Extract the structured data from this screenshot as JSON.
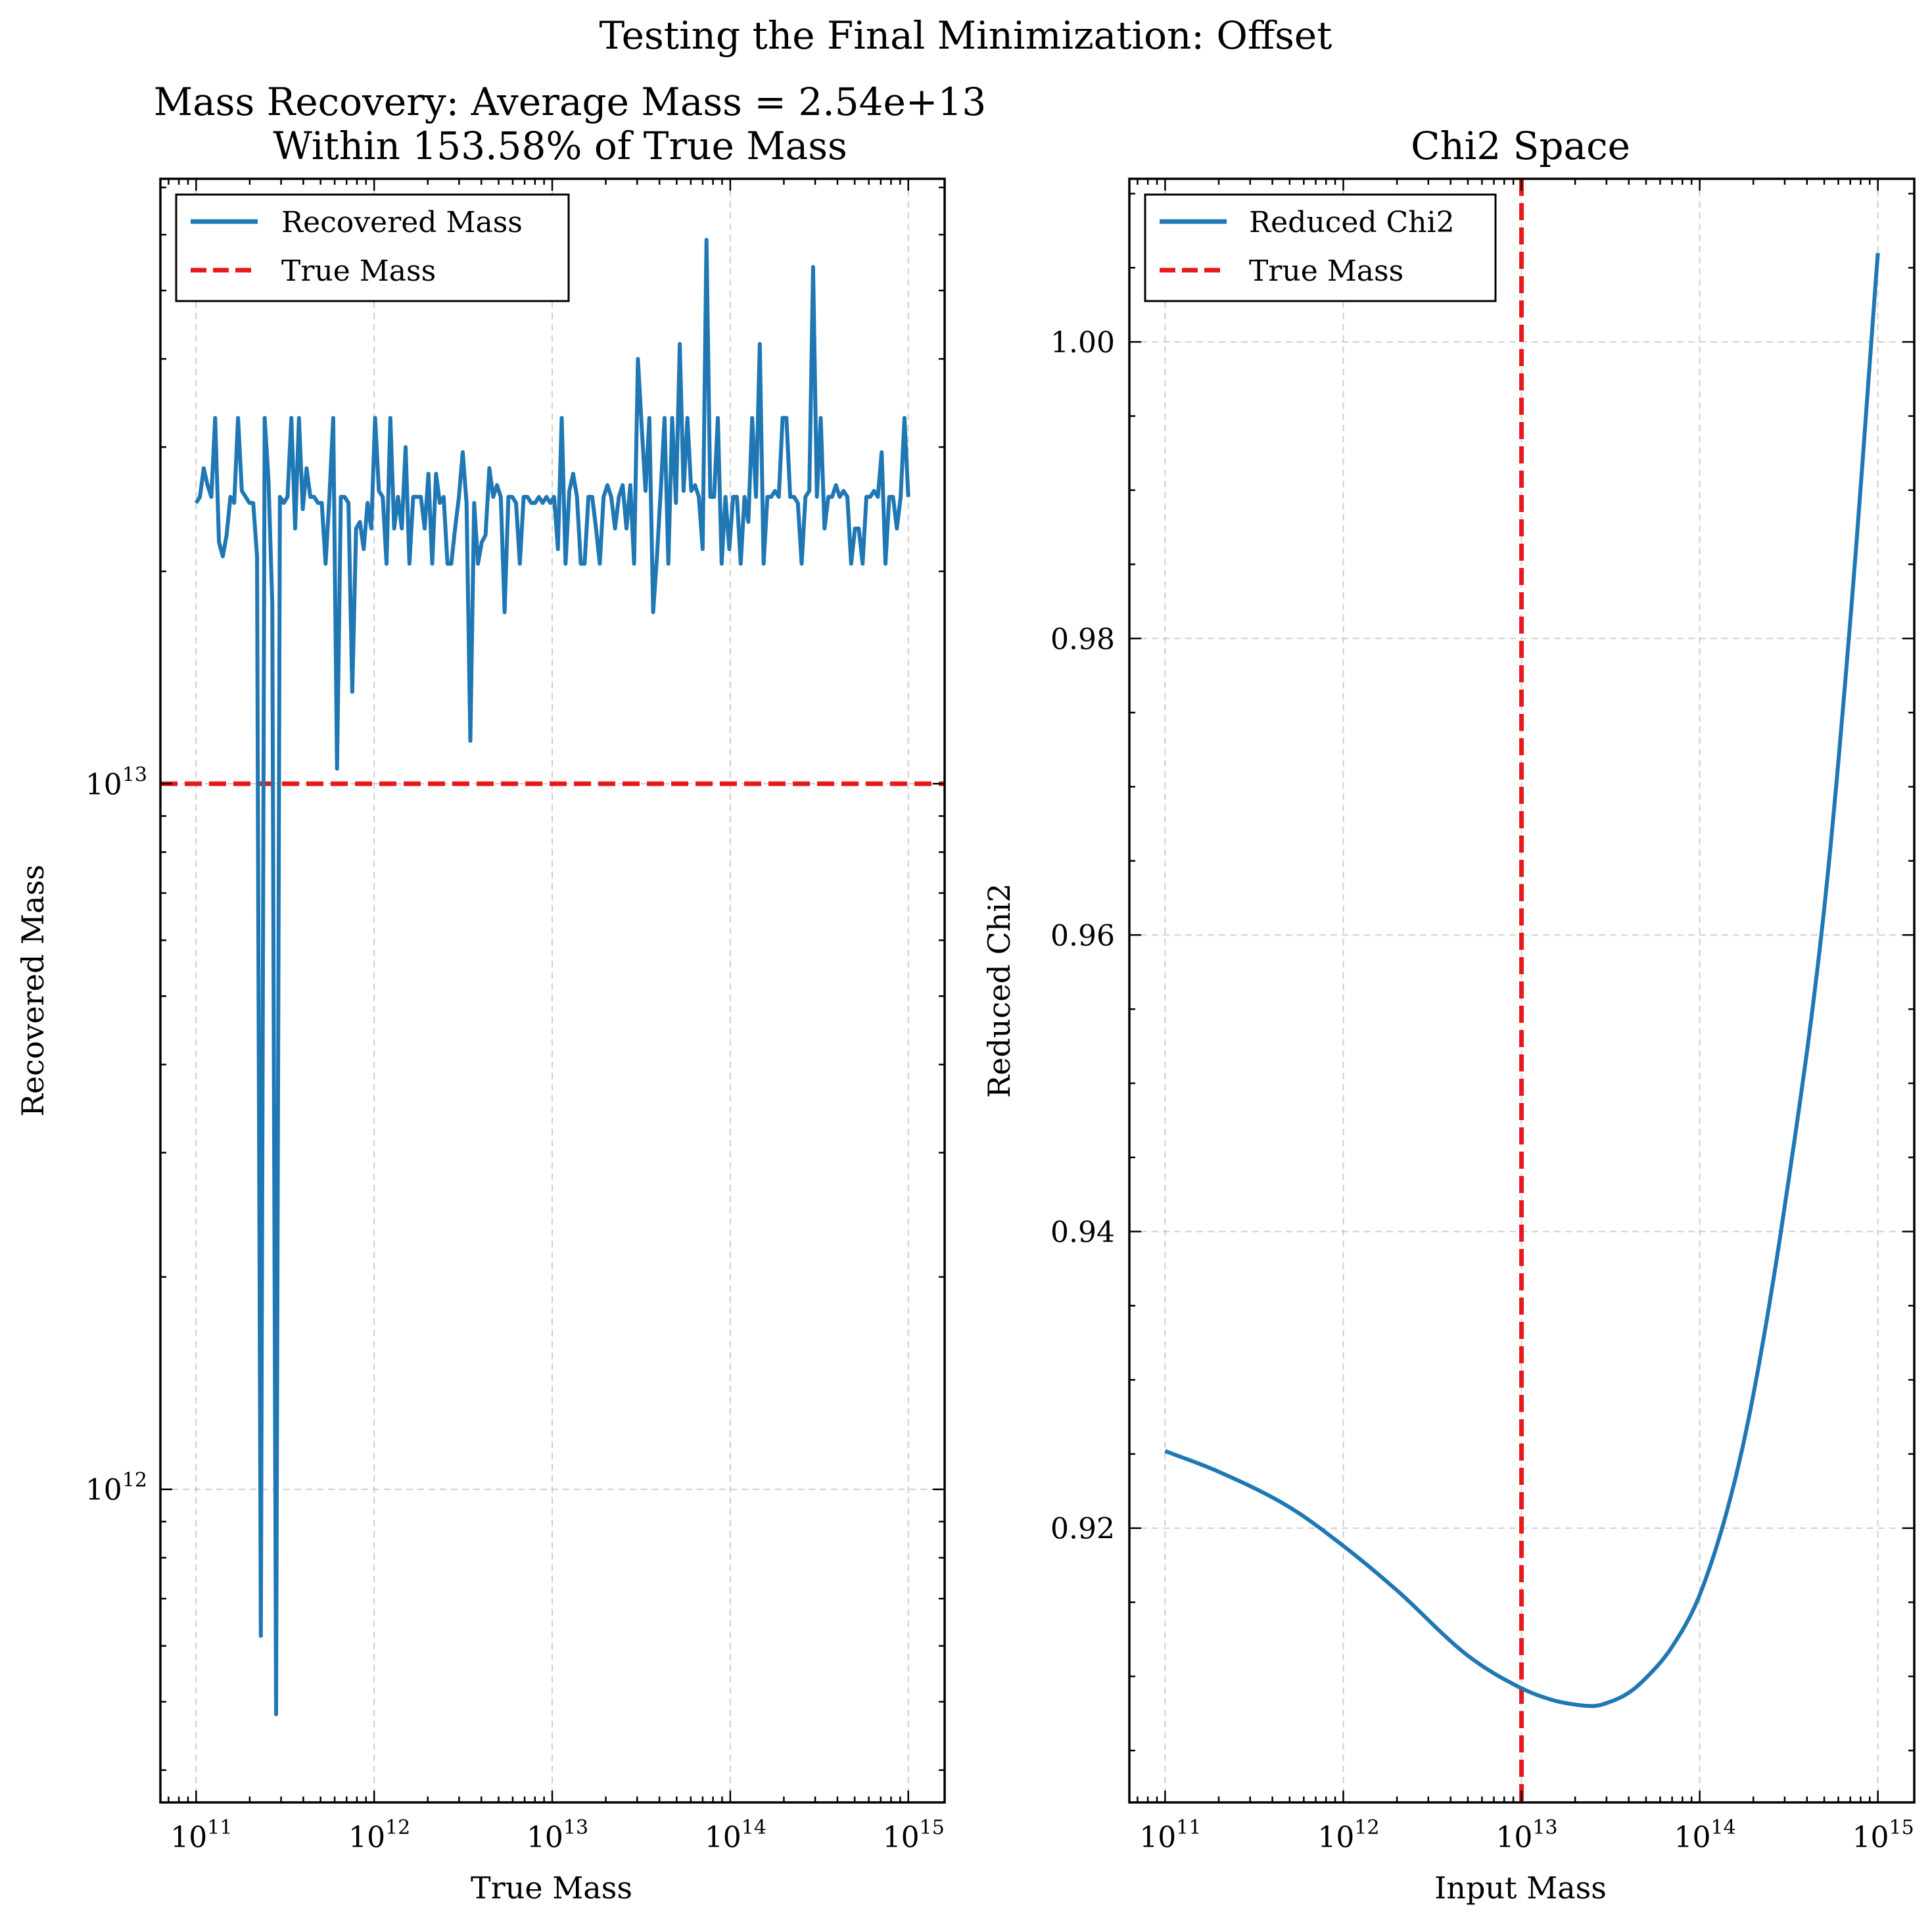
{
  "figure": {
    "suptitle": "Testing the Final Minimization: Offset"
  },
  "chart_data": [
    {
      "type": "line",
      "title_line1": "Mass Recovery: Average Mass = 2.54e+13",
      "title_line2": "Within 153.58% of True Mass",
      "xlabel": "True Mass",
      "ylabel": "Recovered Mass",
      "xscale": "log",
      "yscale": "log",
      "xlim": [
        63000000000.0,
        1600000000000000.0
      ],
      "ylim": [
        360000000000.0,
        72000000000000.0
      ],
      "xticks": [
        {
          "base": "10",
          "exp": "11"
        },
        {
          "base": "10",
          "exp": "12"
        },
        {
          "base": "10",
          "exp": "13"
        },
        {
          "base": "10",
          "exp": "14"
        },
        {
          "base": "10",
          "exp": "15"
        }
      ],
      "yticks": [
        {
          "base": "10",
          "exp": "12"
        },
        {
          "base": "10",
          "exp": "13"
        }
      ],
      "grid": true,
      "legend": "upper left",
      "series": [
        {
          "name": "Recovered Mass",
          "color": "#1f77b4",
          "style": "solid",
          "x_start": 100000000000.0,
          "x_end": 1000000000000000.0,
          "values": [
            25000000000000.0,
            25500000000000.0,
            28000000000000.0,
            26500000000000.0,
            25500000000000.0,
            33000000000000.0,
            22000000000000.0,
            21000000000000.0,
            22500000000000.0,
            25500000000000.0,
            25000000000000.0,
            33000000000000.0,
            26000000000000.0,
            25500000000000.0,
            25000000000000.0,
            25000000000000.0,
            21000000000000.0,
            620000000000.0,
            33000000000000.0,
            27000000000000.0,
            18000000000000.0,
            480000000000.0,
            25500000000000.0,
            25000000000000.0,
            25500000000000.0,
            33000000000000.0,
            23000000000000.0,
            33000000000000.0,
            24500000000000.0,
            28000000000000.0,
            25500000000000.0,
            25500000000000.0,
            25000000000000.0,
            25000000000000.0,
            20500000000000.0,
            25500000000000.0,
            33000000000000.0,
            10500000000000.0,
            25500000000000.0,
            25500000000000.0,
            25000000000000.0,
            13500000000000.0,
            23000000000000.0,
            23500000000000.0,
            21500000000000.0,
            25000000000000.0,
            23000000000000.0,
            33000000000000.0,
            26000000000000.0,
            25500000000000.0,
            20500000000000.0,
            33000000000000.0,
            23000000000000.0,
            25500000000000.0,
            23000000000000.0,
            30000000000000.0,
            20500000000000.0,
            25500000000000.0,
            25500000000000.0,
            25500000000000.0,
            23000000000000.0,
            27500000000000.0,
            20500000000000.0,
            27500000000000.0,
            25000000000000.0,
            25500000000000.0,
            20500000000000.0,
            20500000000000.0,
            23000000000000.0,
            25500000000000.0,
            29500000000000.0,
            25000000000000.0,
            11500000000000.0,
            25000000000000.0,
            20500000000000.0,
            22000000000000.0,
            22500000000000.0,
            28000000000000.0,
            25500000000000.0,
            26500000000000.0,
            25500000000000.0,
            17500000000000.0,
            25500000000000.0,
            25500000000000.0,
            25000000000000.0,
            20500000000000.0,
            25500000000000.0,
            25500000000000.0,
            25000000000000.0,
            25000000000000.0,
            25500000000000.0,
            25000000000000.0,
            25500000000000.0,
            25000000000000.0,
            25500000000000.0,
            21500000000000.0,
            33000000000000.0,
            20500000000000.0,
            26000000000000.0,
            27500000000000.0,
            25500000000000.0,
            20500000000000.0,
            20500000000000.0,
            25500000000000.0,
            25500000000000.0,
            23000000000000.0,
            20500000000000.0,
            25500000000000.0,
            26500000000000.0,
            25500000000000.0,
            23000000000000.0,
            25500000000000.0,
            26500000000000.0,
            23000000000000.0,
            26500000000000.0,
            20500000000000.0,
            40000000000000.0,
            32000000000000.0,
            26000000000000.0,
            33000000000000.0,
            17500000000000.0,
            21000000000000.0,
            26000000000000.0,
            33000000000000.0,
            20500000000000.0,
            33000000000000.0,
            25000000000000.0,
            42000000000000.0,
            26000000000000.0,
            33000000000000.0,
            26000000000000.0,
            26500000000000.0,
            25500000000000.0,
            21500000000000.0,
            59000000000000.0,
            25500000000000.0,
            25500000000000.0,
            33000000000000.0,
            20500000000000.0,
            25500000000000.0,
            21500000000000.0,
            25500000000000.0,
            25500000000000.0,
            20500000000000.0,
            25500000000000.0,
            23500000000000.0,
            33000000000000.0,
            25500000000000.0,
            42000000000000.0,
            20500000000000.0,
            25500000000000.0,
            25500000000000.0,
            26000000000000.0,
            25500000000000.0,
            33000000000000.0,
            33000000000000.0,
            25500000000000.0,
            25500000000000.0,
            25000000000000.0,
            20500000000000.0,
            25500000000000.0,
            26000000000000.0,
            54000000000000.0,
            25500000000000.0,
            33000000000000.0,
            23000000000000.0,
            25500000000000.0,
            25500000000000.0,
            26500000000000.0,
            25500000000000.0,
            26000000000000.0,
            25500000000000.0,
            20500000000000.0,
            23000000000000.0,
            23000000000000.0,
            20500000000000.0,
            25500000000000.0,
            25500000000000.0,
            26000000000000.0,
            25500000000000.0,
            29500000000000.0,
            20500000000000.0,
            25500000000000.0,
            25500000000000.0,
            23000000000000.0,
            25500000000000.0,
            33000000000000.0,
            25500000000000.0
          ]
        },
        {
          "name": "True Mass",
          "color": "#e8191b",
          "style": "dashed",
          "orientation": "horizontal",
          "value": 10000000000000.0
        }
      ]
    },
    {
      "type": "line",
      "title": "Chi2 Space",
      "xlabel": "Input Mass",
      "ylabel": "Reduced Chi2",
      "xscale": "log",
      "yscale": "linear",
      "xlim": [
        63000000000.0,
        1600000000000000.0
      ],
      "ylim": [
        0.9015,
        1.011
      ],
      "xticks": [
        {
          "base": "10",
          "exp": "11"
        },
        {
          "base": "10",
          "exp": "12"
        },
        {
          "base": "10",
          "exp": "13"
        },
        {
          "base": "10",
          "exp": "14"
        },
        {
          "base": "10",
          "exp": "15"
        }
      ],
      "yticks": [
        "0.92",
        "0.94",
        "0.96",
        "0.98",
        "1.00"
      ],
      "ytick_values": [
        0.92,
        0.94,
        0.96,
        0.98,
        1.0
      ],
      "grid": true,
      "legend": "upper left",
      "series": [
        {
          "name": "Reduced Chi2",
          "color": "#1f77b4",
          "style": "solid",
          "x": [
            100000000000.0,
            200000000000.0,
            500000000000.0,
            1000000000000.0,
            2000000000000.0,
            5000000000000.0,
            10000000000000.0,
            15000000000000.0,
            20000000000000.0,
            25000000000000.0,
            30000000000000.0,
            40000000000000.0,
            50000000000000.0,
            70000000000000.0,
            100000000000000.0,
            150000000000000.0,
            200000000000000.0,
            300000000000000.0,
            500000000000000.0,
            700000000000000.0,
            1000000000000000.0
          ],
          "y": [
            0.9252,
            0.9238,
            0.9214,
            0.9188,
            0.9158,
            0.9114,
            0.9092,
            0.9084,
            0.9081,
            0.908,
            0.9082,
            0.9089,
            0.9099,
            0.912,
            0.9155,
            0.9222,
            0.929,
            0.9417,
            0.9618,
            0.9812,
            1.006
          ]
        },
        {
          "name": "True Mass",
          "color": "#e8191b",
          "style": "dashed",
          "orientation": "vertical",
          "value": 10000000000000.0
        }
      ]
    }
  ]
}
